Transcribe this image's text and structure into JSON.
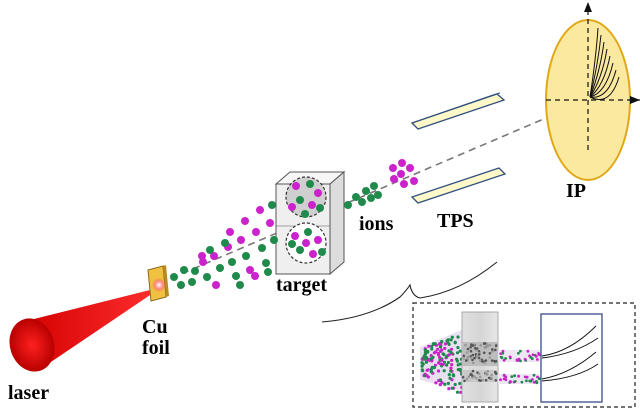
{
  "labels": {
    "laser": "laser",
    "cu_foil_line1": "Cu",
    "cu_foil_line2": "foil",
    "target": "target",
    "ions": "ions",
    "tps": "TPS",
    "ip": "IP"
  },
  "colors": {
    "laser": "#ee1111",
    "laser_dark": "#c00000",
    "foil": "#f0c040",
    "ion_green": "#1f8a4c",
    "ion_magenta": "#cc22cc",
    "plate_fill": "#fff8c8",
    "plate_edge": "#3a5a8a",
    "ip_fill": "#fbe9a0",
    "ip_edge": "#e0a818",
    "inset_frame": "#3a4a8a",
    "target_block": "#efefef"
  },
  "icons": {
    "laser_beam": "laser-cone-icon",
    "foil": "copper-foil-icon",
    "target_block": "target-cube-icon",
    "ion_particle": "ion-dot-icon",
    "tps_plate": "deflector-plate-icon",
    "ip_detector": "image-plate-icon"
  }
}
